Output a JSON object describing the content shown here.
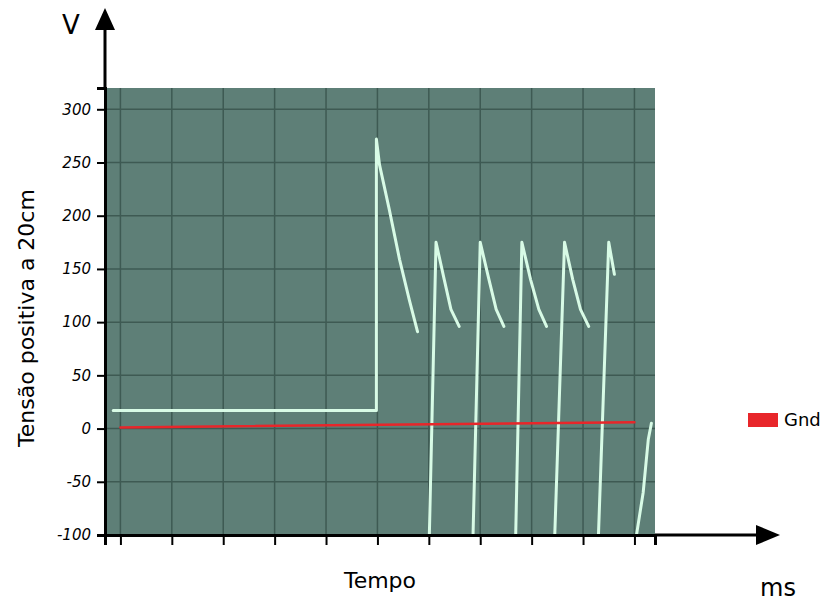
{
  "chart_data": {
    "type": "line",
    "y_unit": "V",
    "ylabel": "Tensão positiva a 20cm",
    "xlabel": "Tempo",
    "x_unit": "ms",
    "xlim": [
      -0.3,
      10.4
    ],
    "xticks": [
      0,
      1,
      2,
      3,
      4,
      5,
      6,
      7,
      8,
      9,
      10
    ],
    "ylim": [
      -100,
      320
    ],
    "yticks": [
      -100,
      -50,
      0,
      50,
      100,
      150,
      200,
      250,
      300
    ],
    "grid": true,
    "tick_labels": "y",
    "legend": "right",
    "series": [
      {
        "color": "#d8fbe6",
        "x": [
          -0.14,
          4.84,
          4.98,
          4.98,
          5.04,
          5.23,
          5.43,
          5.62,
          5.78,
          null,
          6.01,
          6.14,
          6.3,
          6.43,
          6.59,
          null,
          6.86,
          7.0,
          7.17,
          7.31,
          7.46,
          null,
          7.69,
          7.81,
          7.98,
          8.14,
          8.29,
          null,
          8.45,
          8.64,
          8.8,
          8.95,
          9.11,
          null,
          9.3,
          9.5,
          9.61,
          null,
          10.04,
          10.17,
          10.27,
          10.33
        ],
        "values": [
          17,
          17,
          17,
          272,
          248,
          206,
          159,
          121,
          91,
          null,
          -100,
          175,
          140,
          112,
          96,
          null,
          -100,
          175,
          140,
          112,
          96,
          null,
          -100,
          175,
          140,
          112,
          96,
          null,
          -100,
          175,
          140,
          112,
          96,
          null,
          -100,
          175,
          145,
          null,
          -100,
          -60,
          -10,
          5
        ]
      },
      {
        "name": "Gnd",
        "color": "#e8262a",
        "x": [
          0,
          10
        ],
        "values": [
          1,
          6
        ]
      }
    ]
  }
}
